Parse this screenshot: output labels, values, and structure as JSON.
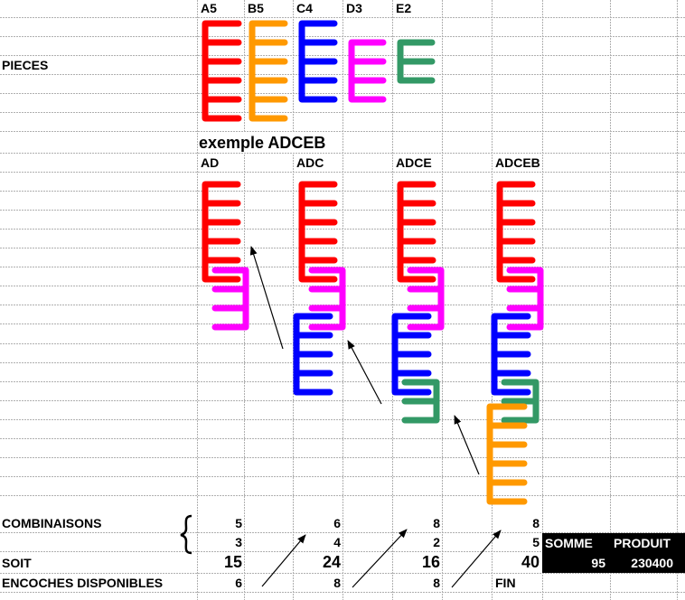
{
  "pieces_label": "PIECES",
  "pieces": [
    {
      "label": "A5",
      "color": "#ff0000"
    },
    {
      "label": "B5",
      "color": "#ff9900"
    },
    {
      "label": "C4",
      "color": "#0000ff"
    },
    {
      "label": "D3",
      "color": "#ff00ff"
    },
    {
      "label": "E2",
      "color": "#339966"
    }
  ],
  "example_title": "exemple ADCEB",
  "steps": [
    "AD",
    "ADC",
    "ADCE",
    "ADCEB"
  ],
  "table": {
    "combinaisons_label": "COMBINAISONS",
    "soit_label": "SOIT",
    "encoches_label": "ENCOCHES DISPONIBLES",
    "combinaisons_row1": [
      "5",
      "6",
      "8",
      "8"
    ],
    "combinaisons_row2": [
      "3",
      "4",
      "2",
      "5"
    ],
    "soit": [
      "15",
      "24",
      "16",
      "40"
    ],
    "encoches": [
      "6",
      "8",
      "8",
      "FIN"
    ],
    "somme_label": "SOMME",
    "produit_label": "PRODUIT",
    "somme": "95",
    "produit": "230400"
  }
}
